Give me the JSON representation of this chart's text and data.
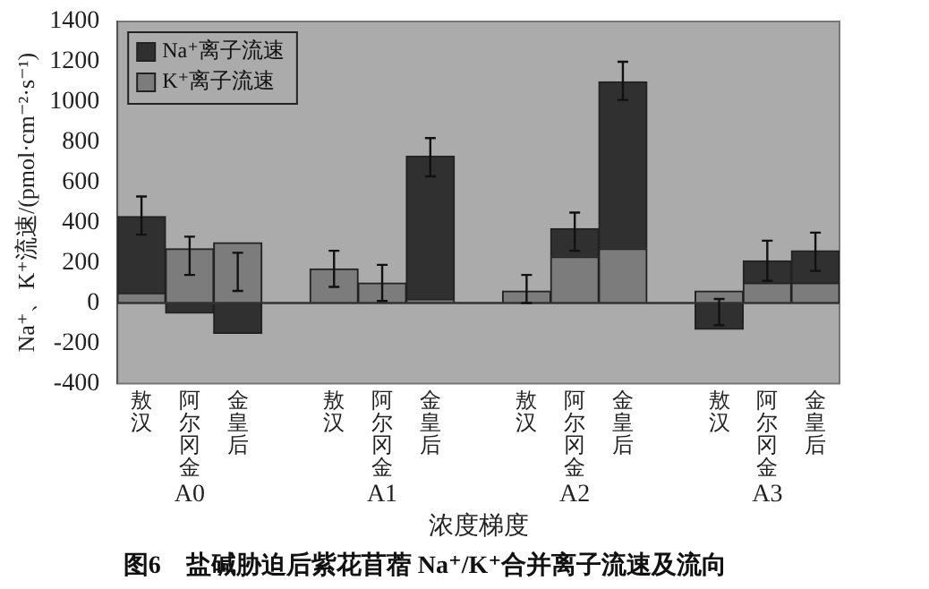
{
  "chart_data": {
    "type": "bar",
    "title": "图6　盐碱胁迫后紫花苜蓿 Na⁺/K⁺合并离子流速及流向",
    "xlabel": "浓度梯度",
    "ylabel": "Na⁺、K⁺流速/(pmol·cm⁻²·s⁻¹)",
    "categories": [
      "敖汉",
      "阿尔冈金",
      "金皇后",
      null,
      "敖汉",
      "阿尔冈金",
      "金皇后",
      null,
      "敖汉",
      "阿尔冈金",
      "金皇后",
      null,
      "敖汉",
      "阿尔冈金",
      "金皇后"
    ],
    "annotations": [
      "A0",
      "A1",
      "A2",
      "A3"
    ],
    "stacked": true,
    "series": [
      {
        "name": "K⁺离子流速",
        "color": "#7c7c7c",
        "values": [
          50,
          270,
          300,
          null,
          170,
          100,
          20,
          null,
          60,
          230,
          270,
          null,
          60,
          100,
          100
        ]
      },
      {
        "name": "Na⁺离子流速",
        "color": "#303030",
        "values": [
          380,
          -50,
          -150,
          null,
          0,
          0,
          710,
          null,
          0,
          140,
          830,
          null,
          -130,
          110,
          160
        ],
        "errors": [
          [
            340,
            530
          ],
          [
            140,
            330
          ],
          [
            60,
            250
          ],
          null,
          [
            80,
            260
          ],
          [
            10,
            190
          ],
          [
            630,
            820
          ],
          null,
          [
            0,
            140
          ],
          [
            260,
            450
          ],
          [
            1010,
            1200
          ],
          null,
          [
            -110,
            20
          ],
          [
            110,
            310
          ],
          [
            160,
            350
          ]
        ]
      }
    ],
    "ylim": [
      -400,
      1400
    ],
    "yticks": [
      -400,
      -200,
      0,
      200,
      400,
      600,
      800,
      1000,
      1200,
      1400
    ],
    "ref_lines": [
      {
        "axis": "y",
        "value": 0,
        "color": "#333333"
      }
    ],
    "grid": false,
    "legend": "top left"
  }
}
